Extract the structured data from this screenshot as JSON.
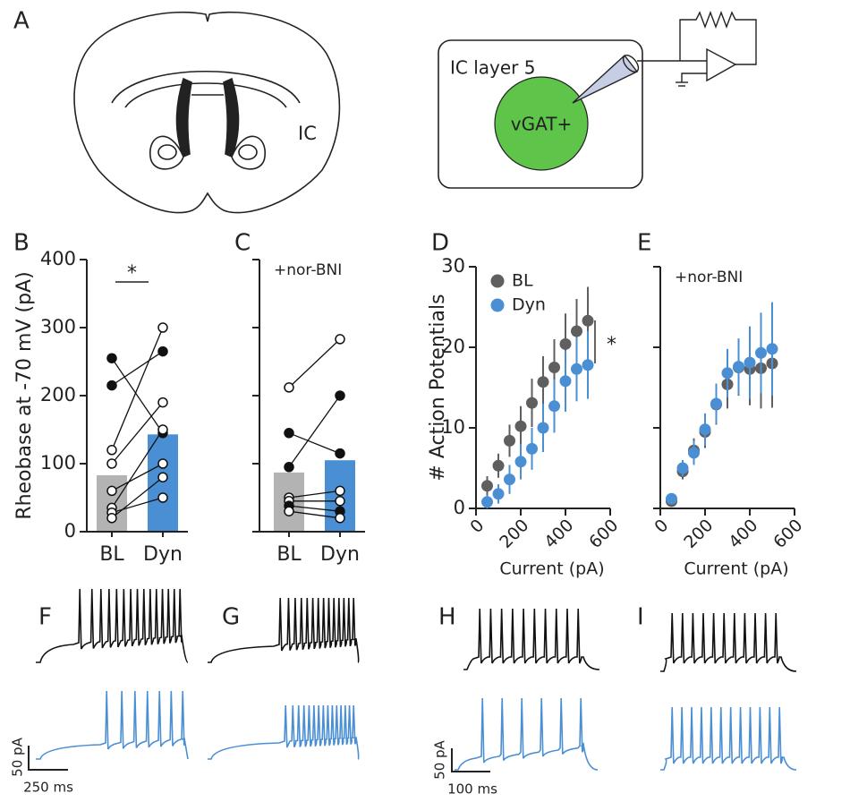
{
  "panel_labels": [
    "A",
    "B",
    "C",
    "D",
    "E",
    "F",
    "G",
    "H",
    "I"
  ],
  "diagram": {
    "region_label": "IC",
    "slice_label": "IC layer 5",
    "cell_label": "vGAT+"
  },
  "chart_data": [
    {
      "type": "bar",
      "ylabel": "Rheobase at -70 mV (pA)",
      "categories": [
        "BL",
        "Dyn"
      ],
      "values": [
        83,
        143
      ],
      "colors": [
        "#b3b3b3",
        "#4a8fd4"
      ],
      "ylim": [
        0,
        400
      ],
      "yticks": [
        0,
        100,
        200,
        300,
        400
      ],
      "significance": "*",
      "pairs": [
        {
          "values": [
            255,
            145
          ],
          "filled": true
        },
        {
          "values": [
            215,
            265
          ],
          "filled": true
        },
        {
          "values": [
            120,
            300
          ],
          "filled": false
        },
        {
          "values": [
            100,
            190
          ],
          "filled": false
        },
        {
          "values": [
            60,
            100
          ],
          "filled": false
        },
        {
          "values": [
            35,
            150
          ],
          "filled": false
        },
        {
          "values": [
            28,
            50
          ],
          "filled": false
        },
        {
          "values": [
            20,
            80
          ],
          "filled": false
        }
      ]
    },
    {
      "type": "bar",
      "annotation": "+nor-BNI",
      "categories": [
        "BL",
        "Dyn"
      ],
      "values": [
        87,
        105
      ],
      "colors": [
        "#b3b3b3",
        "#4a8fd4"
      ],
      "ylim": [
        0,
        400
      ],
      "yticks": [
        0,
        100,
        200,
        300,
        400
      ],
      "ytick_labels": false,
      "pairs": [
        {
          "values": [
            212,
            283
          ],
          "filled": false
        },
        {
          "values": [
            145,
            115
          ],
          "filled": true
        },
        {
          "values": [
            95,
            200
          ],
          "filled": true
        },
        {
          "values": [
            50,
            60
          ],
          "filled": false
        },
        {
          "values": [
            45,
            45
          ],
          "filled": false
        },
        {
          "values": [
            38,
            30
          ],
          "filled": true
        },
        {
          "values": [
            30,
            20
          ],
          "filled": false
        }
      ]
    },
    {
      "type": "scatter",
      "xlabel": "Current (pA)",
      "ylabel": "# Action Potentials",
      "legend": "upper left",
      "significance": "*",
      "x": [
        50,
        100,
        150,
        200,
        250,
        300,
        350,
        400,
        450,
        500
      ],
      "series": [
        {
          "name": "BL",
          "color": "#5f5f5f",
          "values": [
            2.8,
            5.3,
            8.4,
            10.2,
            13.1,
            15.7,
            17.5,
            20.4,
            22.0,
            23.3
          ],
          "errors": [
            1.2,
            1.5,
            2,
            2.5,
            3,
            3.2,
            3.5,
            3.8,
            4,
            4.2
          ]
        },
        {
          "name": "Dyn",
          "color": "#4a8fd4",
          "values": [
            0.8,
            1.8,
            3.6,
            5.8,
            7.4,
            10.0,
            12.7,
            15.8,
            17.3,
            17.8
          ],
          "errors": [
            0.8,
            1.2,
            1.8,
            2.2,
            2.6,
            3,
            3.3,
            3.8,
            4,
            4.2
          ]
        }
      ],
      "xlim": [
        0,
        600
      ],
      "xticks": [
        0,
        200,
        400,
        600
      ],
      "ylim": [
        0,
        30
      ],
      "yticks": [
        0,
        10,
        20,
        30
      ]
    },
    {
      "type": "scatter",
      "xlabel": "Current (pA)",
      "annotation": "+nor-BNI",
      "x": [
        50,
        100,
        150,
        200,
        250,
        300,
        350,
        400,
        450,
        500
      ],
      "series": [
        {
          "color": "#5f5f5f",
          "values": [
            0.9,
            4.6,
            7.2,
            9.5,
            12.9,
            15.4,
            17.5,
            17.3,
            17.4,
            18.0
          ],
          "errors": [
            0.5,
            1,
            1.5,
            2,
            2.5,
            3,
            3.5,
            4.5,
            5,
            5.5
          ]
        },
        {
          "color": "#4a8fd4",
          "values": [
            1.2,
            5.0,
            6.9,
            9.8,
            13.0,
            16.8,
            17.6,
            18.1,
            19.3,
            19.8
          ],
          "errors": [
            0.5,
            1,
            1.5,
            2,
            2.5,
            3,
            3.5,
            4.5,
            5,
            5.8
          ]
        }
      ],
      "xlim": [
        0,
        600
      ],
      "xticks": [
        0,
        200,
        400,
        600
      ],
      "ylim": [
        0,
        30
      ],
      "yticks": [
        0,
        10,
        20,
        30
      ],
      "ytick_labels": false
    }
  ],
  "scale_bars": [
    {
      "y_label": "50 pA",
      "x_label": "250 ms"
    },
    {
      "y_label": "50 pA",
      "x_label": "100 ms"
    }
  ]
}
